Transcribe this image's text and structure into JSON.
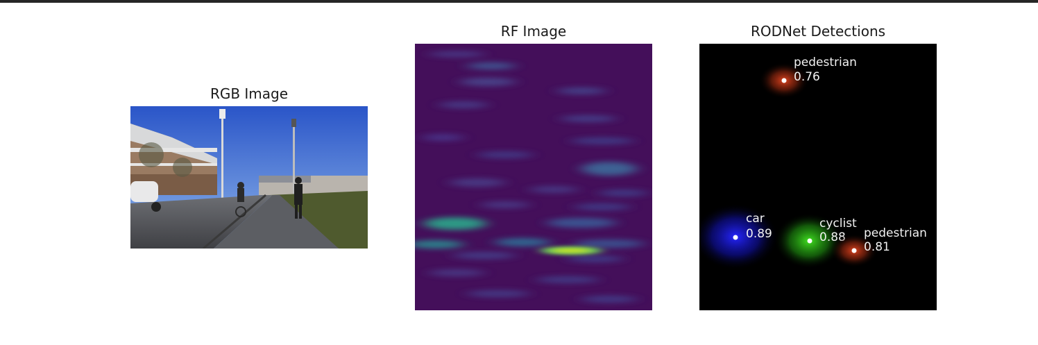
{
  "panels": {
    "rgb": {
      "title": "RGB Image"
    },
    "rf": {
      "title": "RF Image"
    },
    "det": {
      "title": "RODNet Detections"
    }
  },
  "detections": [
    {
      "class": "pedestrian",
      "score": "0.76",
      "color": "#d9401f"
    },
    {
      "class": "car",
      "score": "0.89",
      "color": "#1f1fe8"
    },
    {
      "class": "cyclist",
      "score": "0.88",
      "color": "#35d41f"
    },
    {
      "class": "pedestrian",
      "score": "0.81",
      "color": "#d9401f"
    }
  ],
  "colors": {
    "rf_background": "#440f5a",
    "rf_hotspot": "#d8e51c",
    "det_background": "#000000"
  }
}
